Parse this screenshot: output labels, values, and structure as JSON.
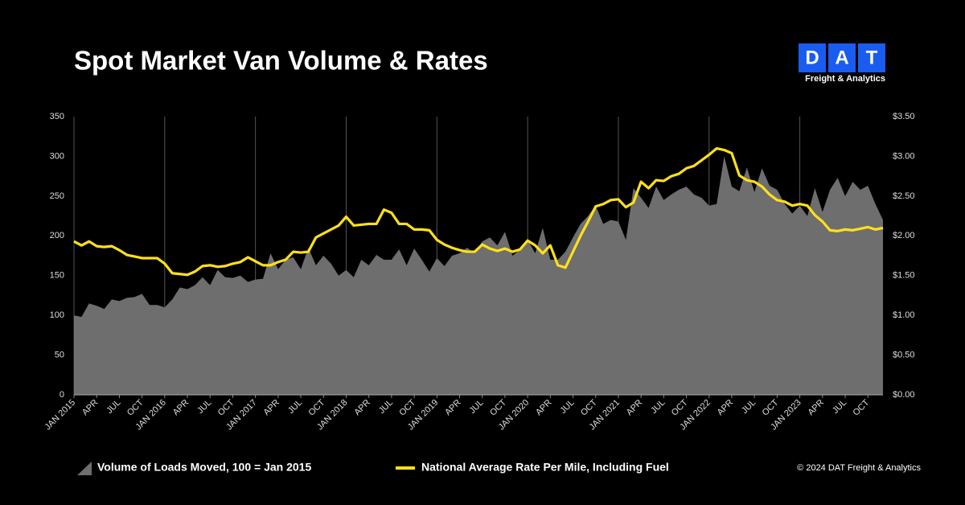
{
  "chart_data": {
    "type": "combo",
    "title": "Spot Market Van Volume & Rates",
    "copyright": "© 2024 DAT Freight & Analytics",
    "categories": [
      "JAN 2015",
      null,
      null,
      "APR",
      null,
      null,
      "JUL",
      null,
      null,
      "OCT",
      null,
      null,
      "JAN 2016",
      null,
      null,
      "APR",
      null,
      null,
      "JUL",
      null,
      null,
      "OCT",
      null,
      null,
      "JAN 2017",
      null,
      null,
      "APR",
      null,
      null,
      "JUL",
      null,
      null,
      "OCT",
      null,
      null,
      "JAN 2018",
      null,
      null,
      "APR",
      null,
      null,
      "JUL",
      null,
      null,
      "OCT",
      null,
      null,
      "JAN 2019",
      null,
      null,
      "APR",
      null,
      null,
      "JUL",
      null,
      null,
      "OCT",
      null,
      null,
      "JAN 2020",
      null,
      null,
      "APR",
      null,
      null,
      "JUL",
      null,
      null,
      "OCT",
      null,
      null,
      "JAN 2021",
      null,
      null,
      "APR",
      null,
      null,
      "JUL",
      null,
      null,
      "OCT",
      null,
      null,
      "JAN 2022",
      null,
      null,
      "APR",
      null,
      null,
      "JUL",
      null,
      null,
      "OCT",
      null,
      null,
      "JAN 2023",
      null,
      null,
      "APR",
      null,
      null,
      "JUL",
      null,
      null,
      "OCT",
      null,
      null
    ],
    "series": [
      {
        "name": "Volume of Loads Moved, 100 = Jan 2015",
        "kind": "area",
        "color": "#6e6e6e",
        "values": [
          100,
          98,
          115,
          112,
          108,
          120,
          118,
          122,
          123,
          127,
          113,
          113,
          110,
          120,
          135,
          133,
          138,
          148,
          138,
          157,
          148,
          147,
          150,
          142,
          145,
          146,
          178,
          158,
          170,
          173,
          158,
          185,
          163,
          175,
          165,
          150,
          157,
          148,
          170,
          163,
          176,
          170,
          170,
          183,
          163,
          184,
          170,
          155,
          172,
          162,
          175,
          178,
          185,
          178,
          193,
          198,
          188,
          205,
          175,
          183,
          195,
          178,
          210,
          170,
          170,
          180,
          198,
          215,
          225,
          238,
          215,
          220,
          218,
          195,
          260,
          248,
          235,
          262,
          245,
          252,
          258,
          262,
          252,
          248,
          238,
          240,
          300,
          262,
          256,
          286,
          255,
          285,
          263,
          258,
          240,
          228,
          238,
          225,
          260,
          230,
          258,
          273,
          250,
          268,
          258,
          263,
          240,
          220
        ]
      },
      {
        "name": "National Average Rate Per Mile, Including Fuel",
        "kind": "line",
        "color": "#ffe01b",
        "axis": "y2",
        "values": [
          1.93,
          1.88,
          1.93,
          1.87,
          1.86,
          1.87,
          1.82,
          1.76,
          1.74,
          1.72,
          1.72,
          1.72,
          1.65,
          1.53,
          1.52,
          1.51,
          1.55,
          1.62,
          1.63,
          1.61,
          1.62,
          1.65,
          1.67,
          1.73,
          1.68,
          1.63,
          1.63,
          1.67,
          1.7,
          1.8,
          1.79,
          1.8,
          1.98,
          2.03,
          2.08,
          2.13,
          2.24,
          2.13,
          2.14,
          2.15,
          2.15,
          2.33,
          2.29,
          2.15,
          2.15,
          2.08,
          2.08,
          2.07,
          1.95,
          1.89,
          1.85,
          1.82,
          1.8,
          1.8,
          1.89,
          1.84,
          1.81,
          1.84,
          1.8,
          1.83,
          1.94,
          1.88,
          1.78,
          1.88,
          1.63,
          1.6,
          1.8,
          2.0,
          2.18,
          2.37,
          2.4,
          2.45,
          2.46,
          2.36,
          2.42,
          2.68,
          2.6,
          2.7,
          2.69,
          2.75,
          2.78,
          2.85,
          2.88,
          2.95,
          3.02,
          3.1,
          3.08,
          3.04,
          2.76,
          2.7,
          2.68,
          2.62,
          2.52,
          2.45,
          2.43,
          2.38,
          2.4,
          2.38,
          2.26,
          2.18,
          2.07,
          2.06,
          2.08,
          2.07,
          2.09,
          2.11,
          2.08,
          2.1
        ]
      }
    ],
    "ylim": [
      0,
      350
    ],
    "yticks": [
      0,
      50,
      100,
      150,
      200,
      250,
      300,
      350
    ],
    "y2lim": [
      0,
      3.5
    ],
    "y2ticks": [
      {
        "value": 0,
        "label": "$0.00"
      },
      {
        "value": 0.5,
        "label": "$0.50"
      },
      {
        "value": 1,
        "label": "$1.00"
      },
      {
        "value": 1.5,
        "label": "$1.50"
      },
      {
        "value": 2,
        "label": "$2.00"
      },
      {
        "value": 2.5,
        "label": "$2.50"
      },
      {
        "value": 3,
        "label": "$3.00"
      },
      {
        "value": 3.5,
        "label": "$3.50"
      }
    ],
    "grid": true,
    "legend": "bottom"
  },
  "logo": {
    "letters": [
      "D",
      "A",
      "T"
    ],
    "tagline": "Freight & Analytics"
  }
}
